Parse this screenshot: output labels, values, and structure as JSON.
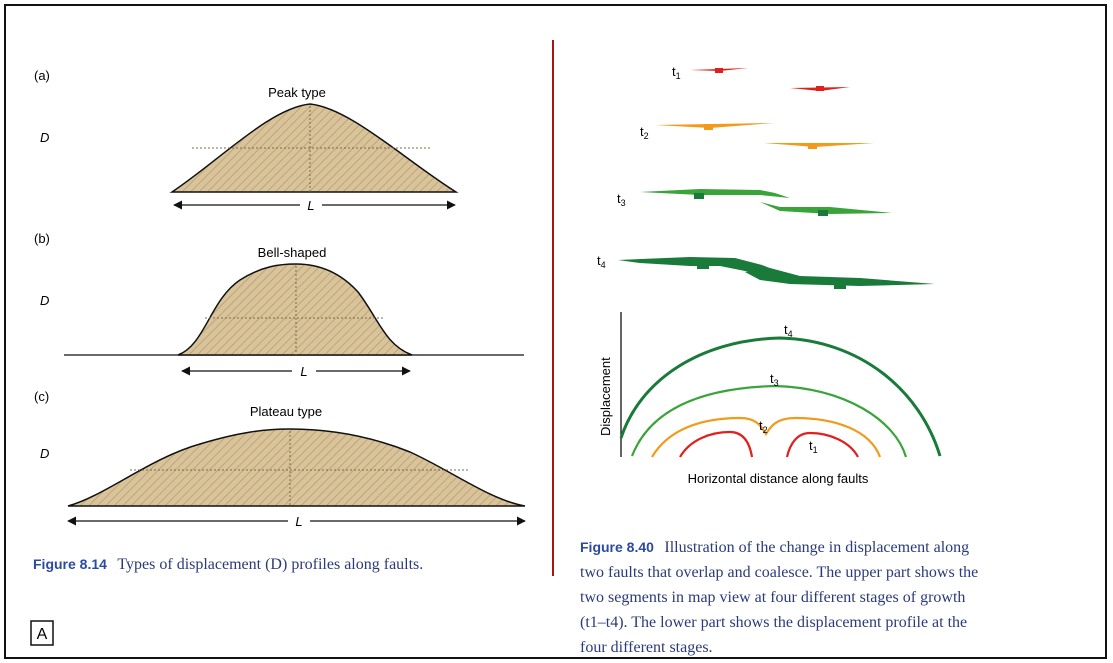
{
  "left_panel": {
    "panel_a": {
      "label": "(a)",
      "title": "Peak type",
      "y_label": "D",
      "length_label": "L"
    },
    "panel_b": {
      "label": "(b)",
      "title": "Bell-shaped",
      "y_label": "D",
      "length_label": "L"
    },
    "panel_c": {
      "label": "(c)",
      "title": "Plateau type",
      "y_label": "D",
      "length_label": "L"
    },
    "caption": {
      "number": "Figure 8.14",
      "text": "Types of displacement (D) profiles along faults."
    },
    "corner_label": "A"
  },
  "right_panel": {
    "map_stages": [
      {
        "label": "t1",
        "sub": "1",
        "color": "#e0201c"
      },
      {
        "label": "t2",
        "sub": "2",
        "color": "#f29a1a"
      },
      {
        "label": "t3",
        "sub": "3",
        "color": "#3aa33a"
      },
      {
        "label": "t4",
        "sub": "4",
        "color": "#1a7a3a"
      }
    ],
    "profile_plot": {
      "y_label": "Displacement",
      "x_label": "Horizontal distance along faults",
      "curve_labels": [
        "t4",
        "t3",
        "t2",
        "t1"
      ]
    },
    "caption": {
      "number": "Figure 8.40",
      "lines": [
        "Illustration of the change in displacement along",
        "two faults that overlap and coalesce. The upper part shows the",
        "two segments in map view at four different stages of growth",
        "(t1–t4). The lower part shows the displacement profile at the",
        "four different stages."
      ]
    }
  },
  "colors": {
    "fill": "#d9c39a",
    "divider": "#a01818",
    "caption": "#2b3a7a",
    "t1": "#e0201c",
    "t2": "#f29a1a",
    "t3": "#3aa33a",
    "t4": "#1a7a3a"
  }
}
